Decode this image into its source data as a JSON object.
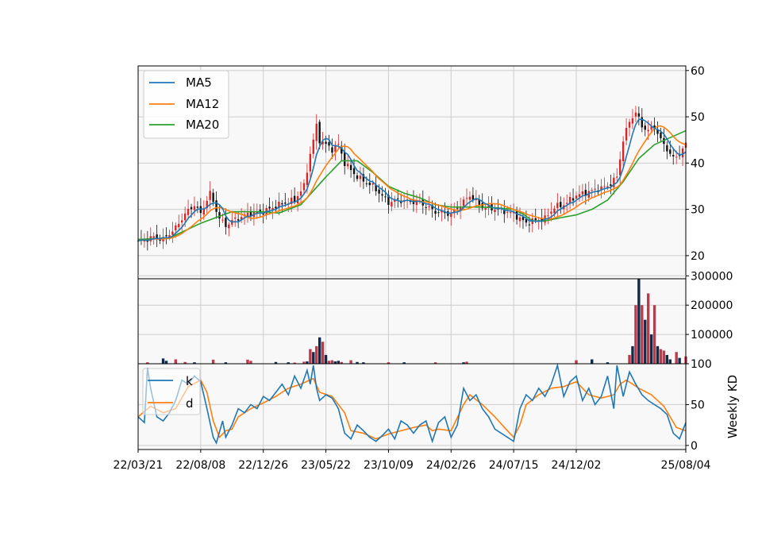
{
  "chart_data": {
    "type": "candlestick",
    "x_tick_labels": [
      "22/03/21",
      "22/08/08",
      "22/12/26",
      "23/05/22",
      "23/10/09",
      "24/02/26",
      "24/07/15",
      "24/12/02",
      "25/08/04"
    ],
    "x_ticks_week_index": [
      0,
      20,
      40,
      60,
      80,
      100,
      120,
      140,
      175
    ],
    "n_weeks": 176,
    "colors": {
      "ma5": "#1f77b4",
      "ma12": "#ff7f0e",
      "ma20": "#2ca02c",
      "up": "#d62728",
      "down": "#111111",
      "volume_up": "#c0384b",
      "volume_down": "#102a4c",
      "grid": "#cccccc",
      "panel_bg": "#f8f8f8"
    },
    "price_panel": {
      "ylim": [
        15,
        61
      ],
      "yticks": [
        20,
        30,
        40,
        50,
        60
      ],
      "legend": [
        "MA5",
        "MA12",
        "MA20"
      ],
      "legend_position": "upper-left",
      "close_anchors": [
        [
          0,
          23
        ],
        [
          5,
          24
        ],
        [
          8,
          23.5
        ],
        [
          12,
          26
        ],
        [
          15,
          29
        ],
        [
          18,
          31
        ],
        [
          20,
          29
        ],
        [
          23,
          33.5
        ],
        [
          26,
          28
        ],
        [
          28,
          26.5
        ],
        [
          30,
          27.5
        ],
        [
          35,
          29
        ],
        [
          40,
          29.5
        ],
        [
          45,
          31
        ],
        [
          50,
          32
        ],
        [
          53,
          35
        ],
        [
          55,
          42
        ],
        [
          57,
          48
        ],
        [
          58,
          45
        ],
        [
          60,
          44
        ],
        [
          62,
          43
        ],
        [
          64,
          44
        ],
        [
          66,
          40
        ],
        [
          70,
          37
        ],
        [
          75,
          35
        ],
        [
          80,
          31.5
        ],
        [
          83,
          32
        ],
        [
          90,
          31.5
        ],
        [
          95,
          29.5
        ],
        [
          100,
          29
        ],
        [
          103,
          31
        ],
        [
          106,
          33
        ],
        [
          110,
          30.5
        ],
        [
          115,
          30
        ],
        [
          120,
          29
        ],
        [
          124,
          27
        ],
        [
          126,
          27.5
        ],
        [
          130,
          28
        ],
        [
          133,
          30.5
        ],
        [
          136,
          31
        ],
        [
          140,
          33
        ],
        [
          145,
          34
        ],
        [
          150,
          35
        ],
        [
          153,
          37
        ],
        [
          155,
          45
        ],
        [
          157,
          49
        ],
        [
          159,
          51
        ],
        [
          161,
          48
        ],
        [
          163,
          47
        ],
        [
          165,
          48
        ],
        [
          167,
          45
        ],
        [
          169,
          43
        ],
        [
          171,
          41
        ],
        [
          173,
          42
        ],
        [
          175,
          44
        ]
      ],
      "ma20_anchors": [
        [
          0,
          23.5
        ],
        [
          10,
          23.8
        ],
        [
          20,
          27
        ],
        [
          30,
          29.5
        ],
        [
          40,
          29.5
        ],
        [
          45,
          29.2
        ],
        [
          52,
          31
        ],
        [
          56,
          34
        ],
        [
          60,
          37
        ],
        [
          65,
          40.5
        ],
        [
          70,
          40.5
        ],
        [
          75,
          38
        ],
        [
          80,
          35
        ],
        [
          85,
          33.5
        ],
        [
          90,
          32.5
        ],
        [
          95,
          31
        ],
        [
          100,
          30.5
        ],
        [
          105,
          30.5
        ],
        [
          110,
          30.5
        ],
        [
          115,
          30.3
        ],
        [
          120,
          30
        ],
        [
          123,
          29
        ],
        [
          126,
          27.5
        ],
        [
          130,
          27.5
        ],
        [
          135,
          28.2
        ],
        [
          140,
          28.8
        ],
        [
          145,
          30
        ],
        [
          150,
          32
        ],
        [
          155,
          36
        ],
        [
          160,
          41
        ],
        [
          165,
          44
        ],
        [
          170,
          45.5
        ],
        [
          175,
          47
        ]
      ]
    },
    "volume_panel": {
      "ylim": [
        0,
        290000
      ],
      "yticks": [
        100000,
        200000,
        300000
      ],
      "ytick_labels": [
        "100000",
        "200000",
        "300000"
      ],
      "bars": [
        [
          3,
          5000,
          "up"
        ],
        [
          8,
          18000,
          "down"
        ],
        [
          9,
          10000,
          "down"
        ],
        [
          12,
          15000,
          "up"
        ],
        [
          15,
          6000,
          "up"
        ],
        [
          18,
          5000,
          "down"
        ],
        [
          24,
          14000,
          "up"
        ],
        [
          28,
          5000,
          "down"
        ],
        [
          35,
          14000,
          "up"
        ],
        [
          36,
          10000,
          "up"
        ],
        [
          44,
          6000,
          "down"
        ],
        [
          48,
          5000,
          "down"
        ],
        [
          50,
          4000,
          "up"
        ],
        [
          53,
          7000,
          "up"
        ],
        [
          54,
          8000,
          "down"
        ],
        [
          55,
          50000,
          "up"
        ],
        [
          56,
          40000,
          "down"
        ],
        [
          57,
          60000,
          "up"
        ],
        [
          58,
          90000,
          "down"
        ],
        [
          59,
          75000,
          "up"
        ],
        [
          60,
          30000,
          "down"
        ],
        [
          61,
          10000,
          "up"
        ],
        [
          62,
          12000,
          "up"
        ],
        [
          63,
          8000,
          "down"
        ],
        [
          64,
          10000,
          "down"
        ],
        [
          65,
          6000,
          "up"
        ],
        [
          68,
          12000,
          "up"
        ],
        [
          70,
          6000,
          "down"
        ],
        [
          72,
          5000,
          "down"
        ],
        [
          80,
          5000,
          "up"
        ],
        [
          85,
          5000,
          "down"
        ],
        [
          95,
          5000,
          "up"
        ],
        [
          104,
          5000,
          "down"
        ],
        [
          105,
          7000,
          "up"
        ],
        [
          140,
          12000,
          "up"
        ],
        [
          145,
          15000,
          "down"
        ],
        [
          150,
          5000,
          "down"
        ],
        [
          157,
          30000,
          "up"
        ],
        [
          158,
          60000,
          "down"
        ],
        [
          159,
          200000,
          "up"
        ],
        [
          160,
          290000,
          "down"
        ],
        [
          161,
          200000,
          "up"
        ],
        [
          162,
          150000,
          "down"
        ],
        [
          163,
          240000,
          "up"
        ],
        [
          164,
          100000,
          "down"
        ],
        [
          165,
          200000,
          "up"
        ],
        [
          166,
          60000,
          "down"
        ],
        [
          167,
          50000,
          "up"
        ],
        [
          168,
          45000,
          "up"
        ],
        [
          169,
          30000,
          "down"
        ],
        [
          170,
          15000,
          "down"
        ],
        [
          172,
          40000,
          "up"
        ],
        [
          173,
          20000,
          "down"
        ],
        [
          175,
          25000,
          "up"
        ]
      ]
    },
    "kd_panel": {
      "ylim": [
        -5,
        100
      ],
      "yticks": [
        0,
        50,
        100
      ],
      "ylabel": "Weekly KD",
      "legend": [
        "k",
        "d"
      ],
      "legend_position": "upper-left",
      "k_anchors": [
        [
          0,
          35
        ],
        [
          2,
          28
        ],
        [
          3,
          95
        ],
        [
          4,
          70
        ],
        [
          6,
          35
        ],
        [
          8,
          30
        ],
        [
          10,
          40
        ],
        [
          12,
          55
        ],
        [
          14,
          80
        ],
        [
          16,
          75
        ],
        [
          18,
          85
        ],
        [
          20,
          78
        ],
        [
          22,
          45
        ],
        [
          24,
          10
        ],
        [
          25,
          3
        ],
        [
          27,
          30
        ],
        [
          28,
          10
        ],
        [
          30,
          25
        ],
        [
          32,
          45
        ],
        [
          34,
          40
        ],
        [
          36,
          50
        ],
        [
          38,
          45
        ],
        [
          40,
          60
        ],
        [
          42,
          55
        ],
        [
          44,
          65
        ],
        [
          46,
          75
        ],
        [
          48,
          62
        ],
        [
          50,
          85
        ],
        [
          52,
          70
        ],
        [
          54,
          92
        ],
        [
          55,
          75
        ],
        [
          56,
          98
        ],
        [
          57,
          70
        ],
        [
          58,
          55
        ],
        [
          60,
          62
        ],
        [
          62,
          58
        ],
        [
          64,
          45
        ],
        [
          66,
          15
        ],
        [
          68,
          8
        ],
        [
          70,
          25
        ],
        [
          72,
          18
        ],
        [
          74,
          10
        ],
        [
          76,
          5
        ],
        [
          78,
          12
        ],
        [
          80,
          20
        ],
        [
          82,
          8
        ],
        [
          84,
          30
        ],
        [
          86,
          25
        ],
        [
          88,
          15
        ],
        [
          90,
          25
        ],
        [
          92,
          30
        ],
        [
          94,
          5
        ],
        [
          96,
          28
        ],
        [
          98,
          35
        ],
        [
          100,
          10
        ],
        [
          102,
          25
        ],
        [
          104,
          70
        ],
        [
          106,
          55
        ],
        [
          108,
          62
        ],
        [
          110,
          45
        ],
        [
          112,
          35
        ],
        [
          114,
          20
        ],
        [
          116,
          15
        ],
        [
          118,
          10
        ],
        [
          120,
          5
        ],
        [
          122,
          45
        ],
        [
          124,
          62
        ],
        [
          126,
          55
        ],
        [
          128,
          70
        ],
        [
          130,
          60
        ],
        [
          132,
          75
        ],
        [
          134,
          98
        ],
        [
          136,
          60
        ],
        [
          138,
          78
        ],
        [
          140,
          85
        ],
        [
          142,
          55
        ],
        [
          144,
          70
        ],
        [
          146,
          50
        ],
        [
          148,
          60
        ],
        [
          150,
          85
        ],
        [
          152,
          45
        ],
        [
          153,
          98
        ],
        [
          155,
          60
        ],
        [
          157,
          90
        ],
        [
          159,
          75
        ],
        [
          161,
          62
        ],
        [
          163,
          55
        ],
        [
          165,
          50
        ],
        [
          167,
          45
        ],
        [
          169,
          38
        ],
        [
          171,
          15
        ],
        [
          173,
          8
        ],
        [
          175,
          28
        ]
      ],
      "d_anchors": [
        [
          0,
          35
        ],
        [
          4,
          48
        ],
        [
          8,
          40
        ],
        [
          12,
          45
        ],
        [
          16,
          72
        ],
        [
          20,
          80
        ],
        [
          22,
          65
        ],
        [
          24,
          30
        ],
        [
          26,
          10
        ],
        [
          28,
          18
        ],
        [
          30,
          20
        ],
        [
          32,
          35
        ],
        [
          36,
          45
        ],
        [
          40,
          52
        ],
        [
          44,
          60
        ],
        [
          48,
          70
        ],
        [
          52,
          75
        ],
        [
          56,
          82
        ],
        [
          58,
          65
        ],
        [
          62,
          60
        ],
        [
          66,
          40
        ],
        [
          68,
          18
        ],
        [
          72,
          15
        ],
        [
          76,
          8
        ],
        [
          80,
          14
        ],
        [
          84,
          18
        ],
        [
          88,
          22
        ],
        [
          92,
          25
        ],
        [
          94,
          18
        ],
        [
          96,
          20
        ],
        [
          100,
          18
        ],
        [
          104,
          50
        ],
        [
          106,
          62
        ],
        [
          110,
          50
        ],
        [
          114,
          35
        ],
        [
          118,
          18
        ],
        [
          120,
          10
        ],
        [
          122,
          25
        ],
        [
          124,
          50
        ],
        [
          128,
          62
        ],
        [
          132,
          70
        ],
        [
          136,
          72
        ],
        [
          140,
          78
        ],
        [
          144,
          62
        ],
        [
          148,
          58
        ],
        [
          152,
          62
        ],
        [
          154,
          75
        ],
        [
          156,
          80
        ],
        [
          160,
          70
        ],
        [
          164,
          62
        ],
        [
          168,
          48
        ],
        [
          172,
          22
        ],
        [
          175,
          18
        ]
      ]
    }
  }
}
